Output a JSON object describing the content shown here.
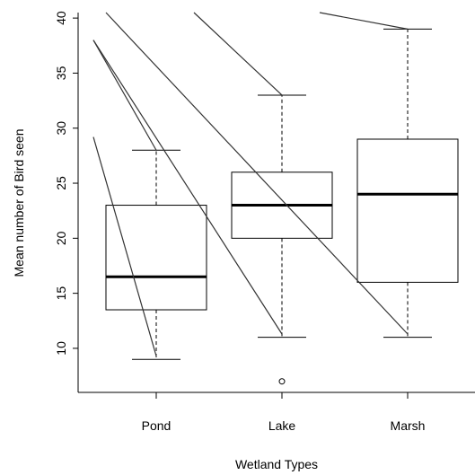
{
  "chart_data": {
    "type": "boxplot",
    "title": "",
    "xlabel": "Wetland Types",
    "ylabel": "Mean number of Bird seen",
    "ylim": [
      6,
      40.5
    ],
    "yticks": [
      10,
      15,
      20,
      25,
      30,
      35,
      40
    ],
    "categories": [
      "Pond",
      "Lake",
      "Marsh"
    ],
    "boxes": [
      {
        "category": "Pond",
        "whisker_low": 9,
        "q1": 13.5,
        "median": 16.5,
        "q3": 23,
        "whisker_high": 28,
        "outliers": []
      },
      {
        "category": "Lake",
        "whisker_low": 11,
        "q1": 20,
        "median": 23,
        "q3": 26,
        "whisker_high": 33,
        "outliers": [
          7
        ]
      },
      {
        "category": "Marsh",
        "whisker_low": 11,
        "q1": 16,
        "median": 24,
        "q3": 29,
        "whisker_high": 39,
        "outliers": []
      }
    ],
    "overlay_lines": [
      {
        "x": [
          0.5,
          1.0
        ],
        "y": [
          29.2,
          9.3
        ]
      },
      {
        "x": [
          0.5,
          1.0
        ],
        "y": [
          38,
          28
        ]
      },
      {
        "x": [
          0.5,
          2.0
        ],
        "y": [
          38,
          11.3
        ]
      },
      {
        "x": [
          0.6,
          3.0
        ],
        "y": [
          40.5,
          11.3
        ]
      },
      {
        "x": [
          1.3,
          2.0
        ],
        "y": [
          40.5,
          33
        ]
      },
      {
        "x": [
          2.3,
          3.0
        ],
        "y": [
          40.5,
          39
        ]
      }
    ],
    "grid": false,
    "legend": "none"
  }
}
